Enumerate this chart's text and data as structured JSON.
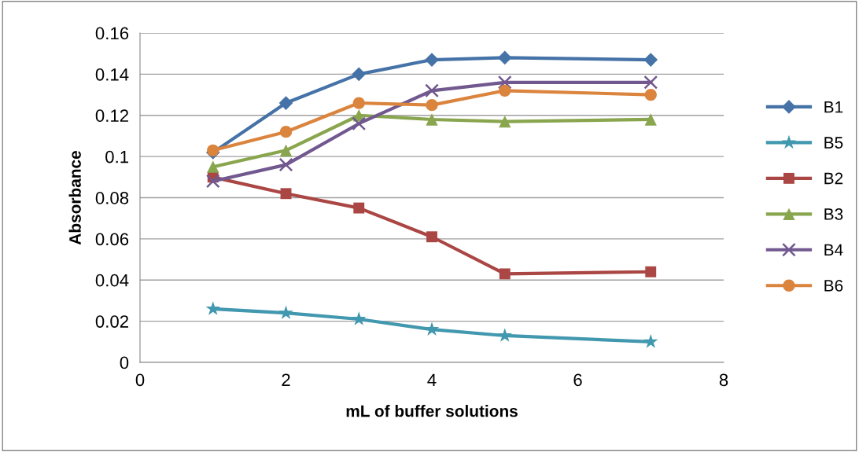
{
  "chart_data": {
    "type": "line",
    "xlabel": "mL of buffer solutions",
    "ylabel": "Absorbance",
    "x": [
      1,
      2,
      3,
      4,
      5,
      7
    ],
    "xlim": [
      0,
      8
    ],
    "xticks": [
      0,
      2,
      4,
      6,
      8
    ],
    "ylim": [
      0,
      0.16
    ],
    "yticks": [
      0,
      0.02,
      0.04,
      0.06,
      0.08,
      0.1,
      0.12,
      0.14,
      0.16
    ],
    "grid": "y",
    "legend": "right",
    "series": [
      {
        "name": "B1",
        "color": "#4572a7",
        "marker": "diamond",
        "values": [
          0.102,
          0.126,
          0.14,
          0.147,
          0.148,
          0.147
        ]
      },
      {
        "name": "B5",
        "color": "#4198af",
        "marker": "star",
        "values": [
          0.026,
          0.024,
          0.021,
          0.016,
          0.013,
          0.01
        ]
      },
      {
        "name": "B2",
        "color": "#aa4643",
        "marker": "square",
        "values": [
          0.09,
          0.082,
          0.075,
          0.061,
          0.043,
          0.044
        ]
      },
      {
        "name": "B3",
        "color": "#89a54e",
        "marker": "triangle",
        "values": [
          0.095,
          0.103,
          0.12,
          0.118,
          0.117,
          0.118
        ]
      },
      {
        "name": "B4",
        "color": "#71588f",
        "marker": "cross",
        "values": [
          0.088,
          0.096,
          0.116,
          0.132,
          0.136,
          0.136
        ]
      },
      {
        "name": "B6",
        "color": "#db843d",
        "marker": "circle",
        "values": [
          0.103,
          0.112,
          0.126,
          0.125,
          0.132,
          0.13
        ]
      }
    ]
  }
}
